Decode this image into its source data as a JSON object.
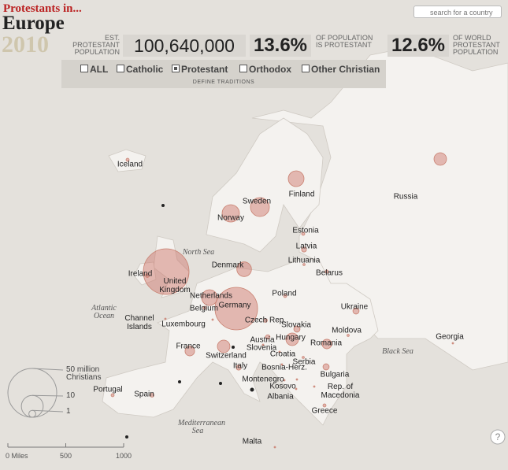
{
  "header": {
    "kicker": "Protestants in...",
    "region": "Europe",
    "year": "2010",
    "est_label": "EST. PROTESTANT POPULATION",
    "population": "100,640,000",
    "pct_population": "13.6%",
    "pct_population_label": "OF POPULATION IS PROTESTANT",
    "pct_world": "12.6%",
    "pct_world_label": "OF WORLD PROTESTANT POPULATION",
    "search_placeholder": "search for a country"
  },
  "filters": {
    "options": [
      {
        "label": "ALL",
        "checked": false
      },
      {
        "label": "Catholic",
        "checked": false
      },
      {
        "label": "Protestant",
        "checked": true
      },
      {
        "label": "Orthodox",
        "checked": false
      },
      {
        "label": "Other Christian",
        "checked": false
      }
    ],
    "define": "DEFINE TRADITIONS"
  },
  "map": {
    "countries": [
      {
        "name": "Iceland",
        "protestants": 0.2
      },
      {
        "name": "Russia",
        "protestants": 3.3
      },
      {
        "name": "Finland",
        "protestants": 5.2
      },
      {
        "name": "Sweden",
        "protestants": 7.5
      },
      {
        "name": "Norway",
        "protestants": 6.3
      },
      {
        "name": "Estonia",
        "protestants": 0.2
      },
      {
        "name": "Latvia",
        "protestants": 0.5
      },
      {
        "name": "Lithuania",
        "protestants": 0.1
      },
      {
        "name": "Belarus",
        "protestants": 0.2
      },
      {
        "name": "Denmark",
        "protestants": 4.5
      },
      {
        "name": "Ireland",
        "protestants": 0.3
      },
      {
        "name": "United Kingdom",
        "protestants": 43.8
      },
      {
        "name": "Netherlands",
        "protestants": 5.2
      },
      {
        "name": "Germany",
        "protestants": 38
      },
      {
        "name": "Belgium",
        "protestants": 0.2
      },
      {
        "name": "Poland",
        "protestants": 0.2
      },
      {
        "name": "Ukraine",
        "protestants": 0.8
      },
      {
        "name": "Czech Rep.",
        "protestants": 0.3
      },
      {
        "name": "Luxembourg",
        "protestants": 0.05
      },
      {
        "name": "Channel Islands",
        "protestants": 0.05
      },
      {
        "name": "Slovakia",
        "protestants": 0.8
      },
      {
        "name": "Austria",
        "protestants": 0.4
      },
      {
        "name": "Hungary",
        "protestants": 3.3
      },
      {
        "name": "Moldova",
        "protestants": 0.1
      },
      {
        "name": "Romania",
        "protestants": 1.9
      },
      {
        "name": "France",
        "protestants": 1.9
      },
      {
        "name": "Switzerland",
        "protestants": 3.3
      },
      {
        "name": "Slovenia",
        "protestants": 0.05
      },
      {
        "name": "Croatia",
        "protestants": 0.05
      },
      {
        "name": "Serbia",
        "protestants": 0.1
      },
      {
        "name": "Italy",
        "protestants": 0.5
      },
      {
        "name": "Georgia",
        "protestants": 0.05
      },
      {
        "name": "Bosnia-Herz.",
        "protestants": 0.05
      },
      {
        "name": "Bulgaria",
        "protestants": 0.8
      },
      {
        "name": "Montenegro",
        "protestants": 0.05
      },
      {
        "name": "Kosovo",
        "protestants": 0.05
      },
      {
        "name": "Rep. of Macedonia",
        "protestants": 0.05
      },
      {
        "name": "Albania",
        "protestants": 0.05
      },
      {
        "name": "Portugal",
        "protestants": 0.2
      },
      {
        "name": "Spain",
        "protestants": 0.3
      },
      {
        "name": "Greece",
        "protestants": 0.2
      },
      {
        "name": "Malta",
        "protestants": 0.05
      }
    ],
    "seas": [
      "North Sea",
      "Atlantic Ocean",
      "Black Sea",
      "Mediterranean Sea"
    ],
    "size_legend": [
      {
        "value": 50,
        "label": "50 million Christians"
      },
      10,
      1
    ],
    "scale_bar": [
      {
        "value": 0,
        "label": "0 Miles"
      },
      500,
      1000
    ]
  }
}
